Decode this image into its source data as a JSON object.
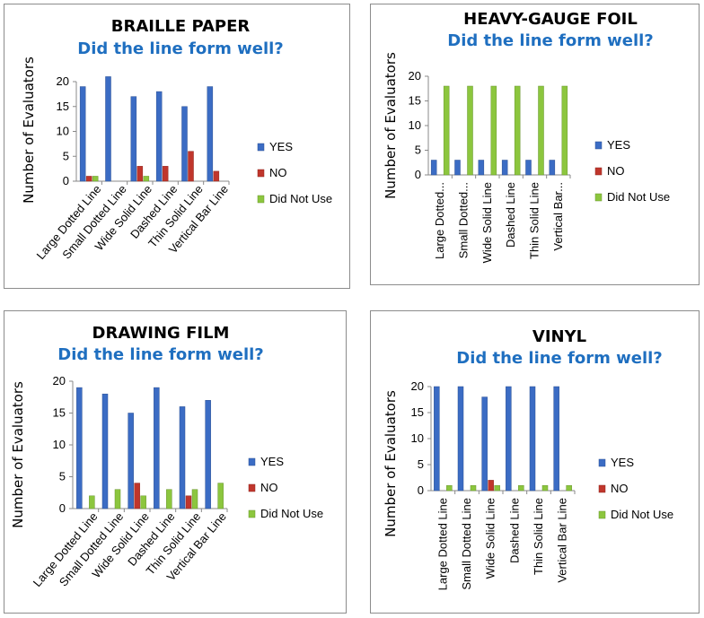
{
  "colors": {
    "YES": "#3b6cc4",
    "NO": "#c0362c",
    "Did Not Use": "#8cc63e"
  },
  "chart_data": [
    {
      "type": "bar",
      "title": "BRAILLE PAPER",
      "subtitle": "Did the line form well?",
      "ylabel": "Number of Evaluators",
      "ylim": [
        0,
        20
      ],
      "yticks": [
        0,
        5,
        10,
        15,
        20
      ],
      "legend": "right",
      "categories": [
        "Large Dotted Line",
        "Small Dotted Line",
        "Wide Solid Line",
        "Dashed Line",
        "Thin Solid Line",
        "Vertical Bar Line"
      ],
      "series": [
        {
          "name": "YES",
          "values": [
            19,
            21,
            17,
            18,
            15,
            19
          ]
        },
        {
          "name": "NO",
          "values": [
            1,
            0,
            3,
            3,
            6,
            2
          ]
        },
        {
          "name": "Did Not Use",
          "values": [
            1,
            0,
            1,
            0,
            0,
            0
          ]
        }
      ]
    },
    {
      "type": "bar",
      "title": "HEAVY-GAUGE FOIL",
      "subtitle": "Did the line form well?",
      "ylabel": "Number of Evaluators",
      "ylim": [
        0,
        20
      ],
      "yticks": [
        0,
        5,
        10,
        15,
        20
      ],
      "legend": "right",
      "categories": [
        "Large Dotted...",
        "Small Dotted...",
        "Wide Solid Line",
        "Dashed Line",
        "Thin Solid Line",
        "Vertical Bar..."
      ],
      "series": [
        {
          "name": "YES",
          "values": [
            3,
            3,
            3,
            3,
            3,
            3
          ]
        },
        {
          "name": "NO",
          "values": [
            0,
            0,
            0,
            0,
            0,
            0
          ]
        },
        {
          "name": "Did Not Use",
          "values": [
            18,
            18,
            18,
            18,
            18,
            18
          ]
        }
      ]
    },
    {
      "type": "bar",
      "title": "DRAWING FILM",
      "subtitle": "Did the line form well?",
      "ylabel": "Number of Evaluators",
      "ylim": [
        0,
        20
      ],
      "yticks": [
        0,
        5,
        10,
        15,
        20
      ],
      "legend": "right",
      "categories": [
        "Large Dotted Line",
        "Small Dotted Line",
        "Wide Solid Line",
        "Dashed Line",
        "Thin Solid Line",
        "Vertical Bar Line"
      ],
      "series": [
        {
          "name": "YES",
          "values": [
            19,
            18,
            15,
            19,
            16,
            17
          ]
        },
        {
          "name": "NO",
          "values": [
            0,
            0,
            4,
            0,
            2,
            0
          ]
        },
        {
          "name": "Did Not Use",
          "values": [
            2,
            3,
            2,
            3,
            3,
            4
          ]
        }
      ]
    },
    {
      "type": "bar",
      "title": "VINYL",
      "subtitle": "Did the line form well?",
      "ylabel": "Number of Evaluators",
      "ylim": [
        0,
        20
      ],
      "yticks": [
        0,
        5,
        10,
        15,
        20
      ],
      "legend": "right",
      "categories": [
        "Large Dotted Line",
        "Small Dotted Line",
        "Wide Solid Line",
        "Dashed Line",
        "Thin Solid Line",
        "Vertical Bar Line"
      ],
      "series": [
        {
          "name": "YES",
          "values": [
            20,
            20,
            18,
            20,
            20,
            20
          ]
        },
        {
          "name": "NO",
          "values": [
            0,
            0,
            2,
            0,
            0,
            0
          ]
        },
        {
          "name": "Did Not Use",
          "values": [
            1,
            1,
            1,
            1,
            1,
            1
          ]
        }
      ]
    }
  ]
}
